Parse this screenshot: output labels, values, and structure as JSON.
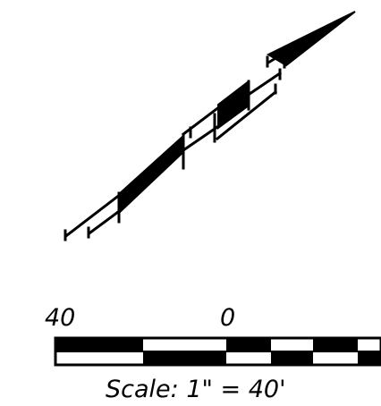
{
  "colors": {
    "ink": "#000000",
    "paper": "#ffffff"
  },
  "scale_bar": {
    "left_label": "40",
    "zero_label": "0",
    "caption": "Scale:  1\"  =  40'"
  }
}
